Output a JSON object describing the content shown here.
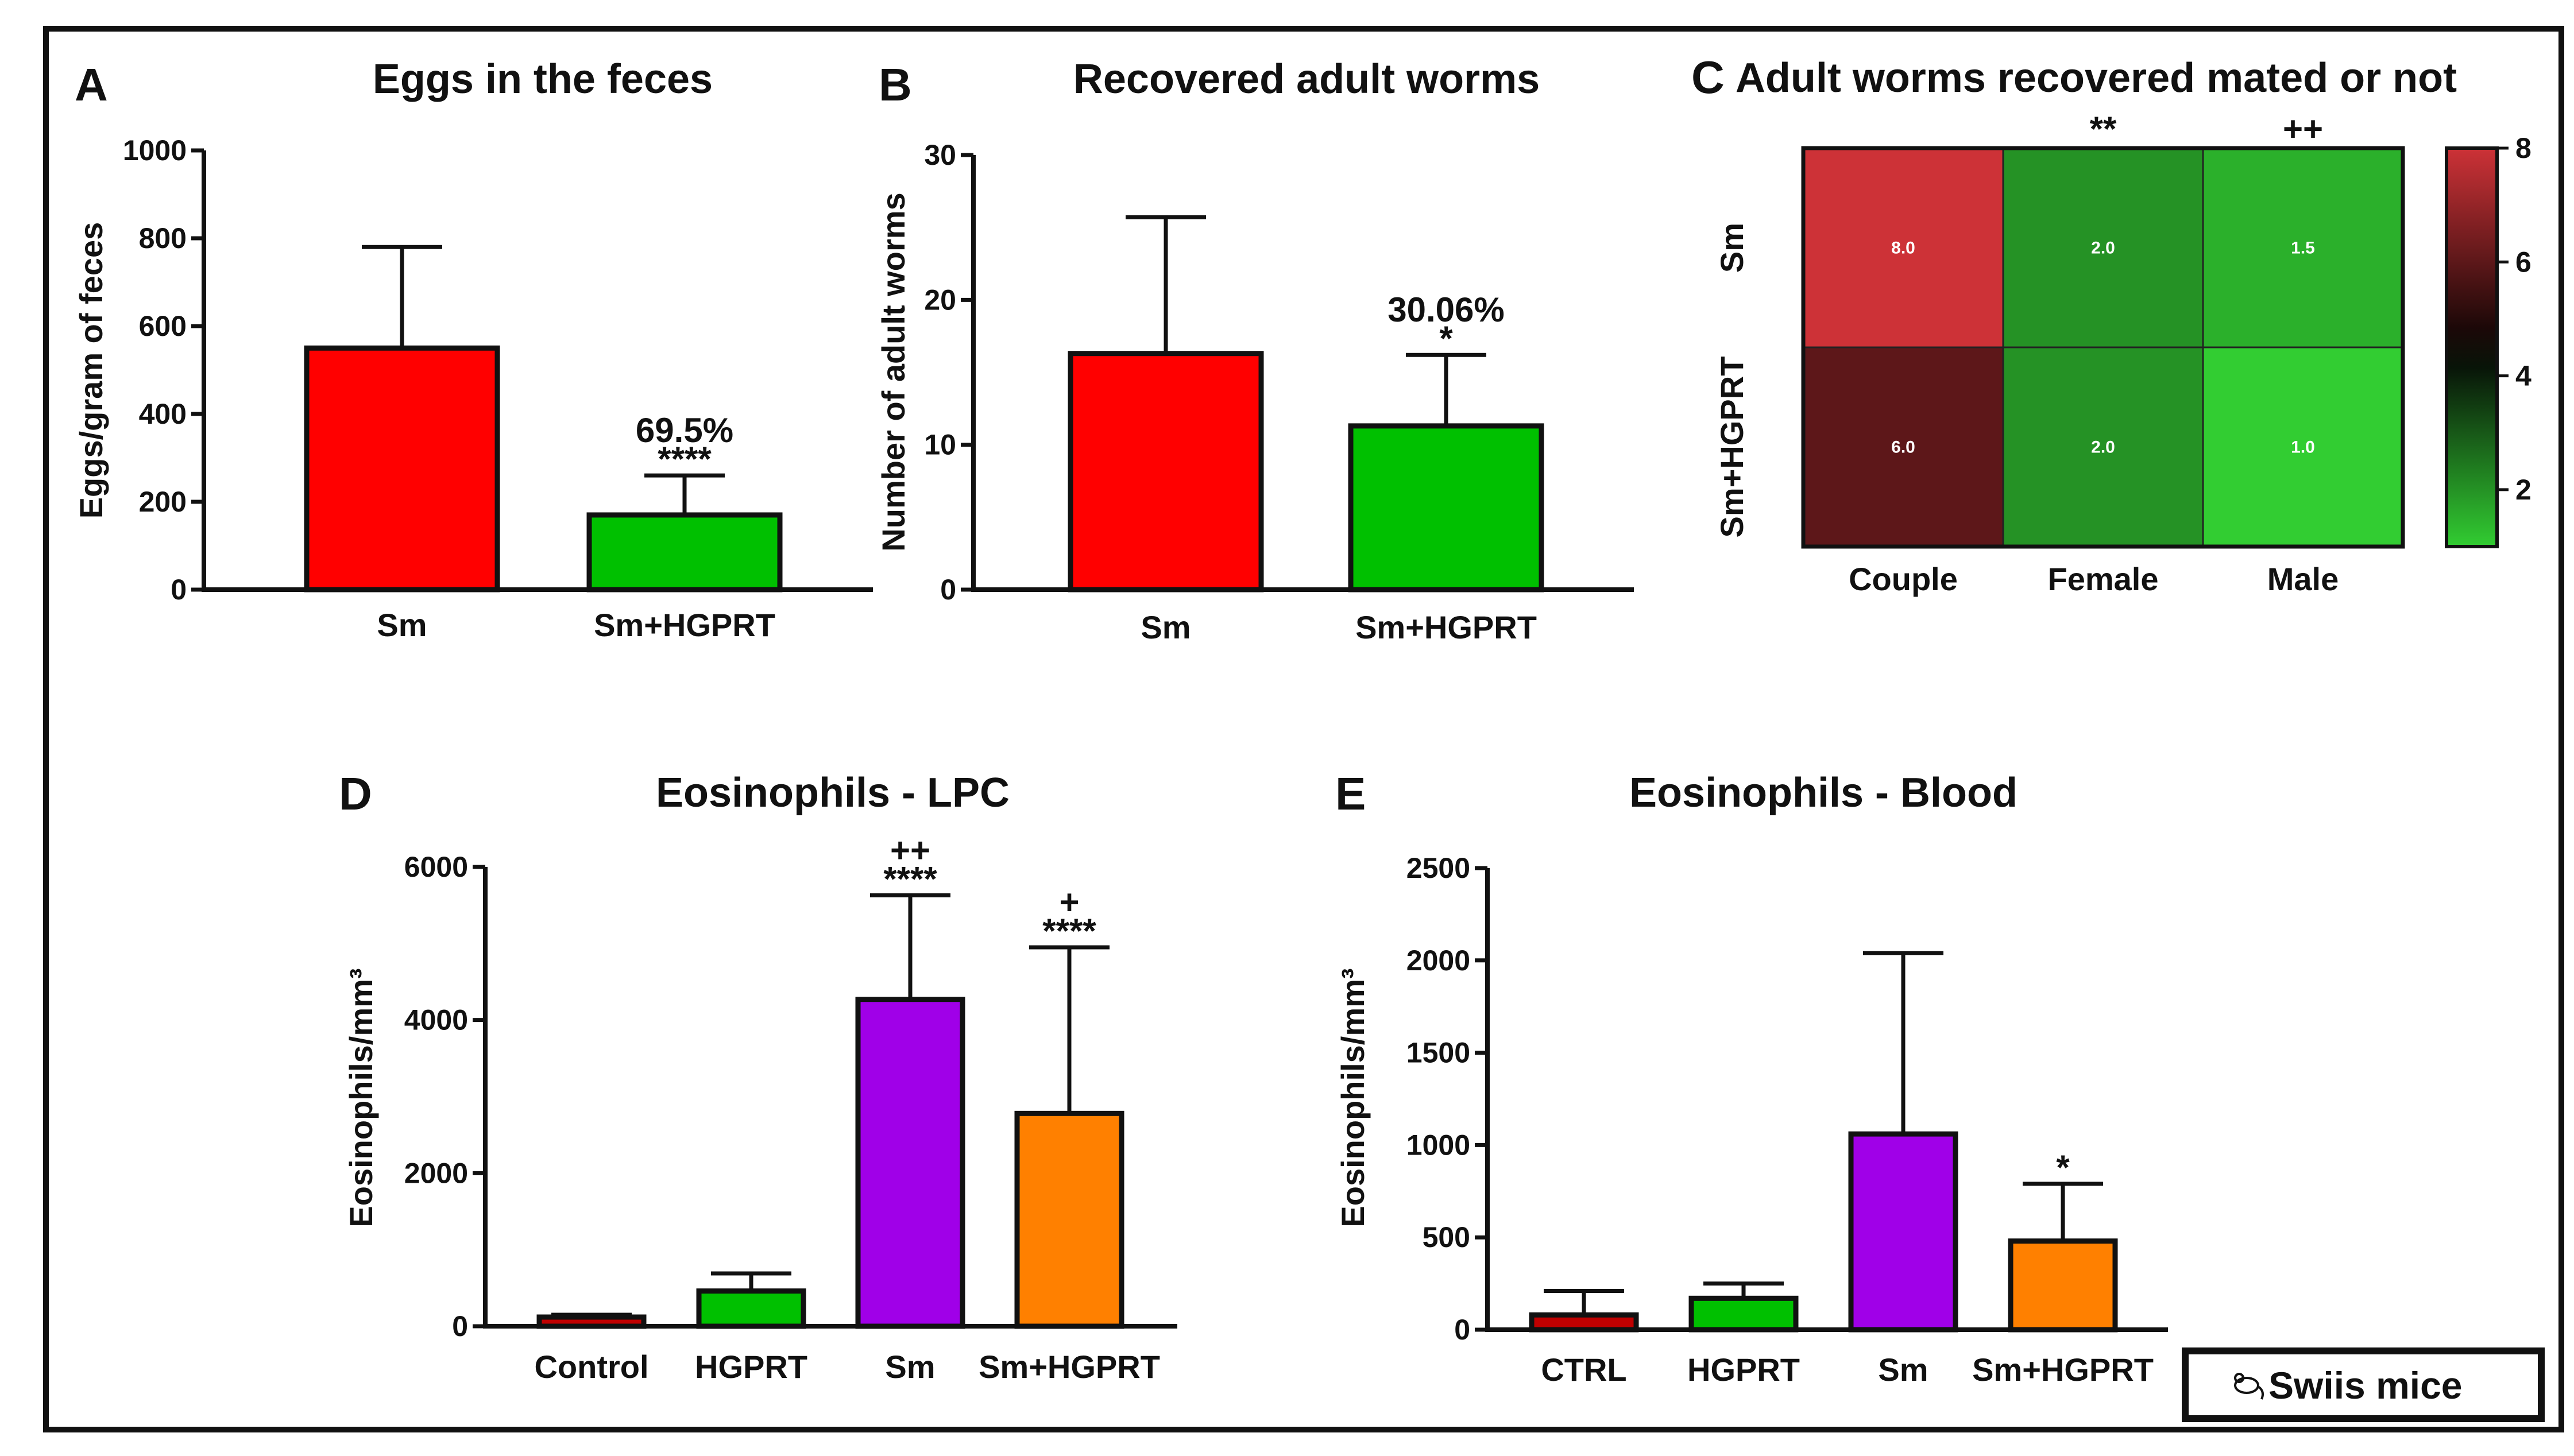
{
  "legend": {
    "icon": "mouse-icon",
    "label": "Swiis  mice"
  },
  "colors": {
    "red": "#ff0000",
    "green": "#00c000",
    "purple": "#a000e8",
    "orange": "#ff8000",
    "darkred": "#c00000"
  },
  "chart_data": [
    {
      "id": "A",
      "panel_label": "A",
      "type": "bar",
      "title": "Eggs in the feces",
      "ylabel": "Eggs/gram of feces",
      "xlabel": "",
      "ylim": [
        0,
        1000
      ],
      "yticks": [
        0,
        200,
        400,
        600,
        800,
        1000
      ],
      "categories": [
        "Sm",
        "Sm+HGPRT"
      ],
      "values": [
        550,
        170
      ],
      "error_upper": [
        780,
        260
      ],
      "bar_colors": [
        "#ff0000",
        "#00c000"
      ],
      "annotations": [
        [
          "",
          ""
        ],
        [
          "69.5%",
          "****"
        ]
      ]
    },
    {
      "id": "B",
      "panel_label": "B",
      "type": "bar",
      "title": "Recovered adult worms",
      "ylabel": "Number of adult worms",
      "xlabel": "",
      "ylim": [
        0,
        30
      ],
      "yticks": [
        0,
        10,
        20,
        30
      ],
      "categories": [
        "Sm",
        "Sm+HGPRT"
      ],
      "values": [
        16.3,
        11.3
      ],
      "error_upper": [
        25.7,
        16.2
      ],
      "bar_colors": [
        "#ff0000",
        "#00c000"
      ],
      "annotations": [
        [
          "",
          ""
        ],
        [
          "30.06%",
          "*"
        ]
      ]
    },
    {
      "id": "C",
      "panel_label": "C",
      "type": "heatmap",
      "title": "Adult worms recovered mated or not",
      "rows": [
        "Sm",
        "Sm+HGPRT"
      ],
      "columns": [
        "Couple",
        "Female",
        "Male"
      ],
      "values": [
        [
          8.0,
          2.0,
          1.5
        ],
        [
          6.0,
          2.0,
          1.0
        ]
      ],
      "value_labels": [
        [
          "8.0",
          "2.0",
          "1.5"
        ],
        [
          "6.0",
          "2.0",
          "1.0"
        ]
      ],
      "column_annotations": [
        "",
        "**",
        "++"
      ],
      "colorbar": {
        "min": 1,
        "max": 8,
        "ticks": [
          2,
          4,
          6,
          8
        ]
      }
    },
    {
      "id": "D",
      "panel_label": "D",
      "type": "bar",
      "title": "Eosinophils - LPC",
      "ylabel": "Eosinophils/mm³",
      "xlabel": "",
      "ylim": [
        0,
        6000
      ],
      "yticks": [
        0,
        2000,
        4000,
        6000
      ],
      "categories": [
        "Control",
        "HGPRT",
        "Sm",
        "Sm+HGPRT"
      ],
      "values": [
        120,
        460,
        4270,
        2780
      ],
      "error_upper": [
        150,
        690,
        5630,
        4950
      ],
      "bar_colors": [
        "#c00000",
        "#00c000",
        "#a000e8",
        "#ff8000"
      ],
      "annotations": [
        [
          "",
          ""
        ],
        [
          "",
          ""
        ],
        [
          "++",
          "****"
        ],
        [
          "+",
          "****"
        ]
      ]
    },
    {
      "id": "E",
      "panel_label": "E",
      "type": "bar",
      "title": "Eosinophils - Blood",
      "ylabel": "Eosinophils/mm³",
      "xlabel": "",
      "ylim": [
        0,
        2500
      ],
      "yticks": [
        0,
        500,
        1000,
        1500,
        2000,
        2500
      ],
      "categories": [
        "CTRL",
        "HGPRT",
        "Sm",
        "Sm+HGPRT"
      ],
      "values": [
        80,
        170,
        1060,
        480
      ],
      "error_upper": [
        210,
        250,
        2040,
        790
      ],
      "bar_colors": [
        "#c00000",
        "#00c000",
        "#a000e8",
        "#ff8000"
      ],
      "annotations": [
        [
          "",
          ""
        ],
        [
          "",
          ""
        ],
        [
          "",
          ""
        ],
        [
          "",
          "*"
        ]
      ]
    }
  ]
}
